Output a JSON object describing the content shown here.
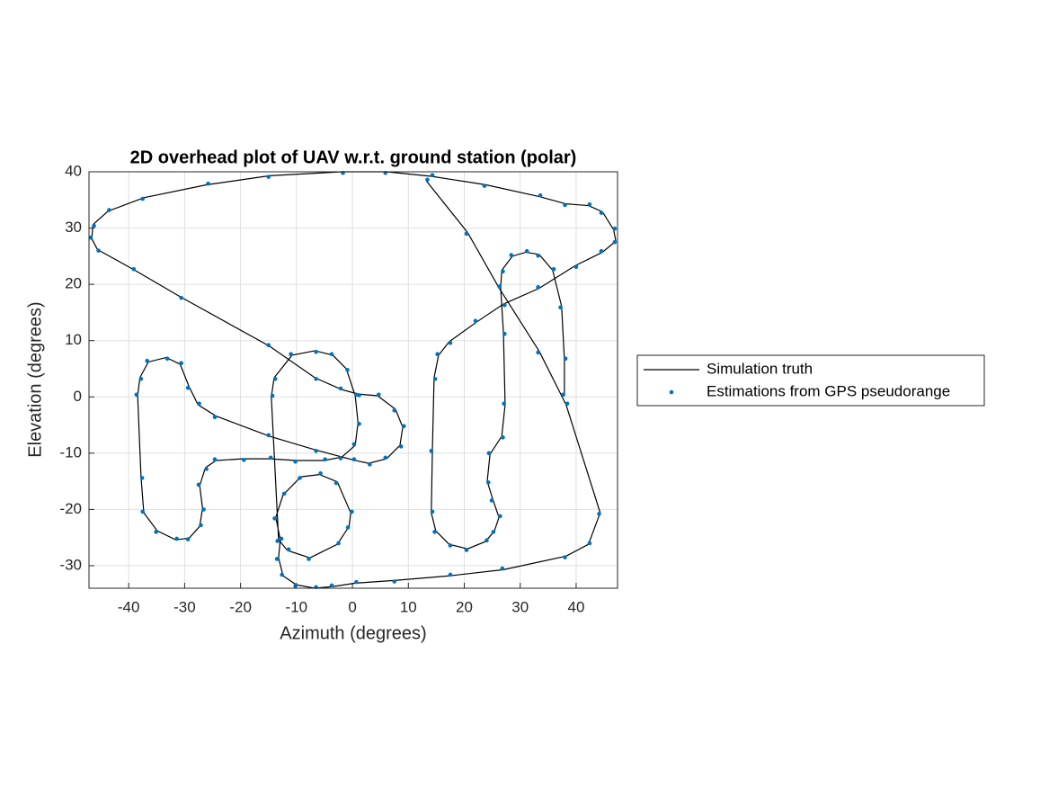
{
  "chart_data": {
    "type": "line",
    "title": "2D overhead plot of UAV w.r.t. ground station (polar)",
    "x_label": "Azimuth (degrees)",
    "y_label": "Elevation (degrees)",
    "xlim": [
      -47.1,
      47.4
    ],
    "ylim": [
      -34,
      40
    ],
    "xticks": [
      -40,
      -30,
      -20,
      -10,
      0,
      10,
      20,
      30,
      40
    ],
    "yticks": [
      -30,
      -20,
      -10,
      0,
      10,
      20,
      30,
      40
    ],
    "grid": true,
    "legend": "eastoutside",
    "series": [
      {
        "name": "Simulation truth",
        "type": "line",
        "color": "#000000",
        "x": [
          13.2,
          20.6,
          26.2,
          33.4,
          38.2,
          44.3,
          42.2,
          38.2,
          27,
          17.3,
          7.7,
          0.5,
          -3.5,
          -6.7,
          -10,
          -12.4,
          -13.2,
          -12.9,
          -13.7,
          -12.4,
          -9.2,
          -5.9,
          -2.7,
          -0.3,
          -0.6,
          -2.7,
          -7.6,
          -11.6,
          -13.2,
          -14.5,
          -14,
          -10.8,
          -6.7,
          -3.5,
          -1.1,
          0.5,
          1,
          0.5,
          -1.9,
          -5.1,
          -10,
          -14.8,
          -19.6,
          -24.4,
          -26.3,
          -27.3,
          -26.8,
          -27.3,
          -29.2,
          -31.6,
          -34.9,
          -37.3,
          -37.8,
          -38.4,
          -38,
          -36.5,
          -33.3,
          -30.8,
          -29.2,
          -27.6,
          -24.4,
          -14.8,
          -6.7,
          0.5,
          2.9,
          6.1,
          8.5,
          9,
          7.7,
          4.5,
          1,
          -1.9,
          -6.7,
          -14.8,
          -30.8,
          -38.9,
          -45.6,
          -46.6,
          -46.4,
          -43.7,
          -37.3,
          -26,
          -14.8,
          -1.9,
          6.1,
          14.1,
          23.8,
          33.4,
          38.2,
          42.2,
          44.7,
          46.7,
          47.1,
          44.7,
          39.8,
          33.4,
          27,
          22.2,
          17.3,
          15.4,
          14.6,
          14.3,
          14.1,
          14.9,
          17.3,
          20.6,
          23.8,
          25.4,
          26.2,
          25.1,
          24.1,
          24.6,
          26.7,
          27.3,
          27,
          26.5,
          26.7,
          28.6,
          31,
          33.4,
          35.8,
          37.4,
          37.9,
          37.9
        ],
        "values": [
          38.4,
          29.2,
          19.4,
          8.1,
          -1.4,
          -20.6,
          -26.2,
          -28.3,
          -30.7,
          -31.8,
          -32.6,
          -33.1,
          -33.7,
          -34,
          -33.4,
          -31.8,
          -28.6,
          -25.4,
          -21.4,
          -17.4,
          -14.2,
          -13.8,
          -15.1,
          -20.6,
          -23,
          -26.2,
          -28.6,
          -27.3,
          -25.4,
          0,
          3.4,
          7.4,
          8.2,
          7.4,
          5,
          0.2,
          -4.6,
          -8.6,
          -10.7,
          -11.3,
          -11.3,
          -11,
          -11,
          -11.3,
          -12.6,
          -15.8,
          -19.8,
          -23,
          -25.1,
          -25.4,
          -23.8,
          -20.6,
          -14.2,
          0.2,
          3.4,
          6.2,
          7,
          5.8,
          1.8,
          -1.4,
          -3.4,
          -7,
          -9.4,
          -11.3,
          -11.8,
          -11,
          -8.6,
          -5.4,
          -2.2,
          0.2,
          0.5,
          1.3,
          3.4,
          9,
          17.8,
          22.5,
          26.2,
          28.1,
          30.6,
          33,
          35.4,
          37.7,
          39.3,
          40,
          40,
          39.2,
          37.7,
          35.6,
          34.3,
          34,
          32.9,
          29.7,
          27.7,
          25.7,
          23.3,
          19.3,
          16.5,
          13.3,
          9.8,
          7.4,
          3.4,
          -9.4,
          -20.6,
          -23.8,
          -26.2,
          -27,
          -25.7,
          -23.8,
          -21.4,
          -18.2,
          -15,
          -10.2,
          -7,
          -1.4,
          11.4,
          19.4,
          22.5,
          25,
          25.7,
          25.3,
          22.5,
          16.1,
          6.6,
          0.2
        ]
      },
      {
        "name": "Estimations from GPS pseudorange",
        "type": "scatter",
        "color": "#0072bd",
        "x": [
          13.4,
          20.4,
          26.3,
          33.2,
          38.4,
          44.1,
          42.4,
          38,
          26.8,
          17.5,
          7.5,
          0.7,
          -3.7,
          -6.5,
          -10.2,
          -12.6,
          -13.5,
          -12.7,
          -13.9,
          -12.2,
          -9.4,
          -5.7,
          -2.9,
          -0.1,
          -0.8,
          -2.5,
          -7.8,
          -11.4,
          -13.4,
          -14.3,
          -13.8,
          -11,
          -6.5,
          -3.7,
          -0.9,
          0.7,
          1.2,
          0.3,
          -2.1,
          -4.9,
          -10.2,
          -14.6,
          -19.4,
          -24.6,
          -26.1,
          -27.5,
          -26.6,
          -27.1,
          -29.4,
          -31.4,
          -35.1,
          -37.5,
          -37.6,
          -38.6,
          -37.8,
          -36.7,
          -33.1,
          -30.6,
          -29.4,
          -27.4,
          -24.6,
          -15,
          -6.5,
          0.3,
          3.1,
          5.9,
          8.7,
          9.2,
          7.5,
          4.7,
          1.2,
          -2.1,
          -6.5,
          -15,
          -30.6,
          -39.1,
          -45.4,
          -46.8,
          -46.2,
          -43.5,
          -37.5,
          -25.8,
          -15,
          -1.7,
          5.9,
          14.3,
          23.6,
          33.6,
          38,
          42.4,
          44.5,
          46.9,
          46.9,
          44.5,
          40,
          33.2,
          27.2,
          22,
          17.5,
          15.2,
          14.8,
          14.1,
          14.3,
          14.7,
          17.5,
          20.4,
          24,
          25.2,
          26.4,
          24.9,
          24.3,
          24.4,
          26.9,
          27.1,
          27.2,
          26.3,
          26.9,
          28.4,
          31.2,
          33.2,
          36,
          37.2,
          38.1,
          37.7
        ],
        "values": [
          38.6,
          29,
          19.6,
          7.9,
          -1.2,
          -20.8,
          -26,
          -28.5,
          -30.5,
          -31.6,
          -32.8,
          -32.9,
          -33.5,
          -33.8,
          -33.6,
          -31.6,
          -28.8,
          -25.2,
          -21.6,
          -17.2,
          -14.4,
          -13.6,
          -15.3,
          -20.4,
          -23.2,
          -26,
          -28.8,
          -27.1,
          -25.6,
          0.2,
          3.2,
          7.6,
          8,
          7.6,
          4.8,
          0.4,
          -4.8,
          -8.4,
          -10.9,
          -11.1,
          -11.5,
          -10.8,
          -11.2,
          -11.1,
          -12.8,
          -15.6,
          -20,
          -22.8,
          -25.3,
          -25.2,
          -24,
          -20.4,
          -14.4,
          0.4,
          3.2,
          6.4,
          6.8,
          6,
          1.6,
          -1.2,
          -3.6,
          -6.8,
          -9.6,
          -11.1,
          -12,
          -10.8,
          -8.8,
          -5.2,
          -2.4,
          0.4,
          0.3,
          1.5,
          3.2,
          9.2,
          17.6,
          22.7,
          26,
          28.3,
          30.4,
          33.2,
          35.2,
          37.9,
          39.1,
          39.8,
          39.8,
          39.4,
          37.5,
          35.8,
          34.1,
          34.2,
          32.7,
          29.9,
          27.5,
          25.9,
          23.1,
          19.5,
          16.3,
          13.5,
          9.6,
          7.6,
          3.2,
          -9.6,
          -20.4,
          -24,
          -26.4,
          -27.2,
          -25.5,
          -24,
          -21.2,
          -18.4,
          -15.2,
          -10,
          -7.2,
          -1.2,
          11.2,
          19.6,
          22.3,
          25.2,
          25.9,
          25.1,
          22.7,
          15.9,
          6.8,
          0.4
        ]
      }
    ]
  }
}
